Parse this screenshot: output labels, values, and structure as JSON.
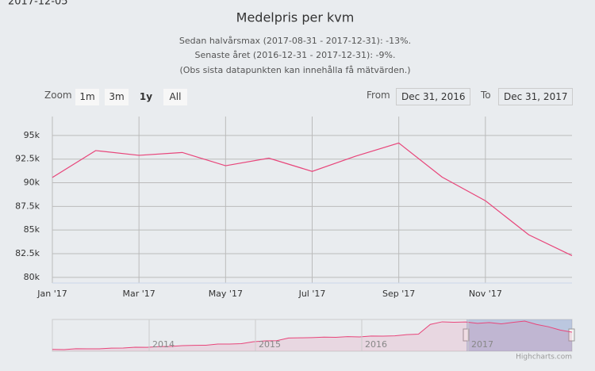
{
  "chart_data": {
    "type": "line",
    "title": "Medelpris per kvm",
    "subtitle": [
      "Sedan halvårsmax (2017-08-31 - 2017-12-31): -13%.",
      "Senaste året (2016-12-31 - 2017-12-31): -9%.",
      "(Obs sista datapunkten kan innehålla få mätvärden.)"
    ],
    "categories": [
      "Jan '17",
      null,
      "Mar '17",
      null,
      "May '17",
      null,
      "Jul '17",
      null,
      "Sep '17",
      null,
      "Nov '17",
      null,
      null
    ],
    "values": [
      90560,
      93400,
      92900,
      93200,
      91800,
      92600,
      91200,
      92800,
      94200,
      90600,
      88100,
      84500,
      82300
    ],
    "color": "#e8457a",
    "ylim": [
      79400,
      97000
    ],
    "yticks": [
      {
        "value": 80000,
        "label": "80k"
      },
      {
        "value": 82500,
        "label": "82.5k"
      },
      {
        "value": 85000,
        "label": "85k"
      },
      {
        "value": 87500,
        "label": "87.5k"
      },
      {
        "value": 90000,
        "label": "90k"
      },
      {
        "value": 92500,
        "label": "92.5k"
      },
      {
        "value": 95000,
        "label": "95k"
      }
    ],
    "grid": true
  },
  "top_text": "2017-12-05",
  "range_selector": {
    "zoom_label": "Zoom",
    "buttons": [
      "1m",
      "3m",
      "1y",
      "All"
    ],
    "selected": 2,
    "from_label": "From",
    "from": "Dec 31, 2016",
    "to_label": "To",
    "to": "Dec 31, 2017"
  },
  "navigator": {
    "values": [
      63800,
      63600,
      64600,
      64400,
      64500,
      65200,
      65300,
      66200,
      66000,
      66800,
      67000,
      67800,
      68200,
      68300,
      69500,
      69600,
      70000,
      72000,
      73000,
      73200,
      76000,
      76200,
      76500,
      77000,
      76800,
      77500,
      77200,
      78200,
      78000,
      78400,
      79600,
      80200,
      90600,
      93400,
      92900,
      93200,
      91800,
      92600,
      91200,
      92800,
      94200,
      90600,
      88100,
      84500,
      82300
    ],
    "year_labels": [
      "2014",
      "2015",
      "2016",
      "2017"
    ]
  },
  "credits": "Highcharts.com"
}
